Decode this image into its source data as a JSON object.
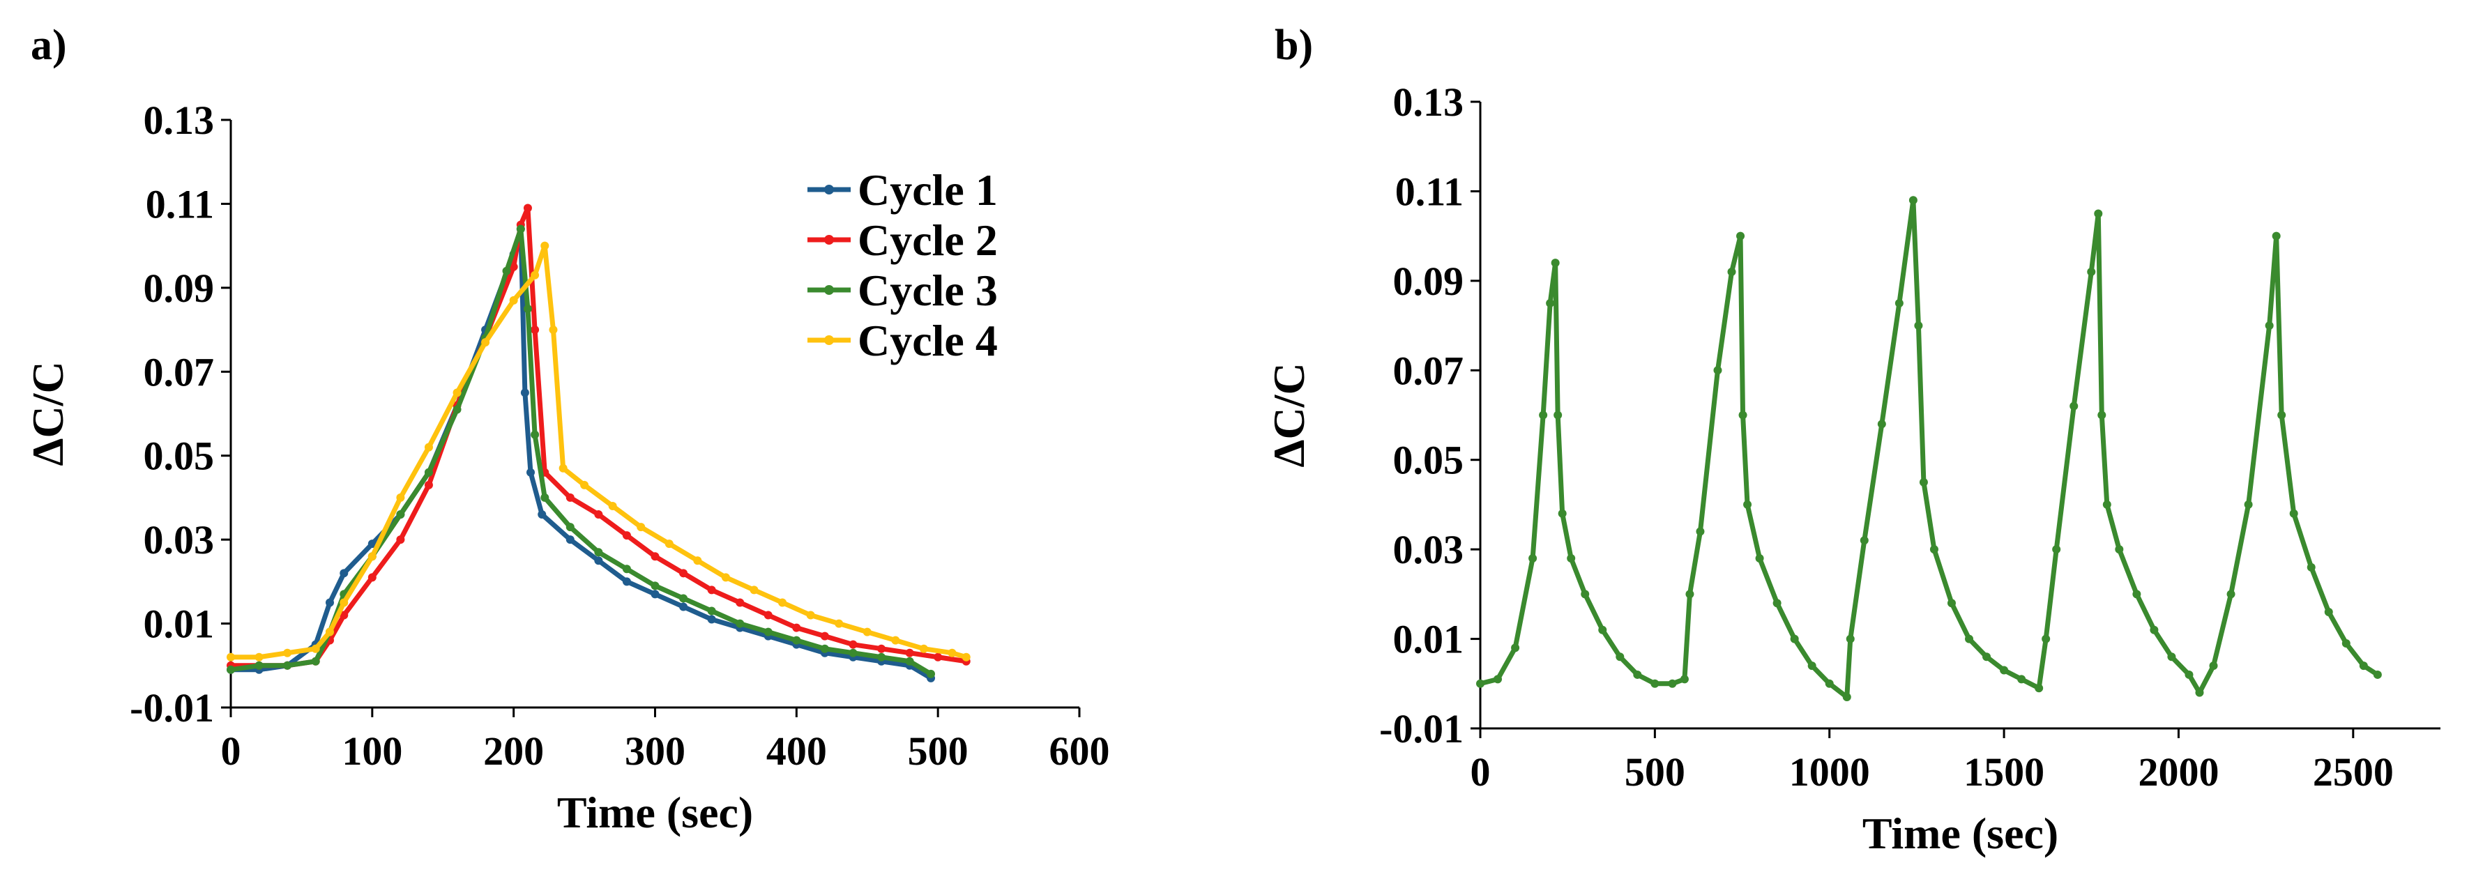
{
  "panels": {
    "a": {
      "label": "a)"
    },
    "b": {
      "label": "b)"
    }
  },
  "chart_data": [
    {
      "type": "line",
      "panel": "a)",
      "title": "",
      "xlabel": "Time (sec)",
      "ylabel": "ΔC/C",
      "xlim": [
        0,
        600
      ],
      "ylim": [
        -0.01,
        0.13
      ],
      "xticks": [
        0,
        100,
        200,
        300,
        400,
        500,
        600
      ],
      "yticks": [
        -0.01,
        0.01,
        0.03,
        0.05,
        0.07,
        0.09,
        0.11,
        0.13
      ],
      "ytick_labels": [
        "-0.01",
        "0.01",
        "0.03",
        "0.05",
        "0.07",
        "0.09",
        "0.11",
        "0.13"
      ],
      "grid": false,
      "legend": "top-right",
      "series": [
        {
          "name": "Cycle 1",
          "color": "#1f5c8e",
          "x": [
            0,
            20,
            40,
            60,
            70,
            80,
            100,
            120,
            140,
            160,
            180,
            200,
            205,
            208,
            212,
            220,
            240,
            260,
            280,
            300,
            320,
            340,
            360,
            380,
            400,
            420,
            440,
            460,
            480,
            495
          ],
          "y": [
            -0.001,
            -0.001,
            0.0,
            0.005,
            0.015,
            0.022,
            0.029,
            0.036,
            0.046,
            0.062,
            0.08,
            0.098,
            0.104,
            0.065,
            0.046,
            0.036,
            0.03,
            0.025,
            0.02,
            0.017,
            0.014,
            0.011,
            0.009,
            0.007,
            0.005,
            0.003,
            0.002,
            0.001,
            0.0,
            -0.003
          ]
        },
        {
          "name": "Cycle 2",
          "color": "#ee1c1c",
          "x": [
            0,
            20,
            40,
            60,
            70,
            80,
            100,
            120,
            140,
            160,
            180,
            200,
            205,
            210,
            215,
            222,
            240,
            260,
            280,
            300,
            320,
            340,
            360,
            380,
            400,
            420,
            440,
            460,
            480,
            500,
            520
          ],
          "y": [
            0.0,
            0.0,
            0.0,
            0.001,
            0.006,
            0.012,
            0.021,
            0.03,
            0.043,
            0.062,
            0.078,
            0.095,
            0.105,
            0.109,
            0.08,
            0.046,
            0.04,
            0.036,
            0.031,
            0.026,
            0.022,
            0.018,
            0.015,
            0.012,
            0.009,
            0.007,
            0.005,
            0.004,
            0.003,
            0.002,
            0.001
          ]
        },
        {
          "name": "Cycle 3",
          "color": "#3a8a2e",
          "x": [
            0,
            20,
            40,
            60,
            70,
            80,
            100,
            120,
            140,
            160,
            180,
            195,
            205,
            210,
            215,
            222,
            240,
            260,
            280,
            300,
            320,
            340,
            360,
            380,
            400,
            420,
            440,
            460,
            480,
            495
          ],
          "y": [
            -0.001,
            0.0,
            0.0,
            0.001,
            0.008,
            0.017,
            0.026,
            0.036,
            0.046,
            0.061,
            0.078,
            0.094,
            0.104,
            0.085,
            0.055,
            0.04,
            0.033,
            0.027,
            0.023,
            0.019,
            0.016,
            0.013,
            0.01,
            0.008,
            0.006,
            0.004,
            0.003,
            0.002,
            0.001,
            -0.002
          ]
        },
        {
          "name": "Cycle 4",
          "color": "#ffc20e",
          "x": [
            0,
            20,
            40,
            60,
            70,
            80,
            100,
            120,
            140,
            160,
            180,
            200,
            215,
            222,
            228,
            235,
            250,
            270,
            290,
            310,
            330,
            350,
            370,
            390,
            410,
            430,
            450,
            470,
            490,
            510,
            520
          ],
          "y": [
            0.002,
            0.002,
            0.003,
            0.004,
            0.008,
            0.015,
            0.026,
            0.04,
            0.052,
            0.065,
            0.077,
            0.087,
            0.093,
            0.1,
            0.08,
            0.047,
            0.043,
            0.038,
            0.033,
            0.029,
            0.025,
            0.021,
            0.018,
            0.015,
            0.012,
            0.01,
            0.008,
            0.006,
            0.004,
            0.003,
            0.002
          ]
        }
      ]
    },
    {
      "type": "line",
      "panel": "b)",
      "title": "",
      "xlabel": "Time (sec)",
      "ylabel": "ΔC/C",
      "xlim": [
        0,
        2750
      ],
      "ylim": [
        -0.01,
        0.13
      ],
      "xticks": [
        0,
        500,
        1000,
        1500,
        2000,
        2500
      ],
      "yticks": [
        -0.01,
        0.01,
        0.03,
        0.05,
        0.07,
        0.09,
        0.11,
        0.13
      ],
      "ytick_labels": [
        "-0.01",
        "0.01",
        "0.03",
        "0.05",
        "0.07",
        "0.09",
        "0.11",
        "0.13"
      ],
      "grid": false,
      "legend": "none",
      "series": [
        {
          "color": "#3a8a2e",
          "x": [
            0,
            50,
            100,
            150,
            180,
            200,
            215,
            222,
            235,
            260,
            300,
            350,
            400,
            450,
            500,
            550,
            585,
            600,
            630,
            680,
            720,
            745,
            752,
            765,
            800,
            850,
            900,
            950,
            1000,
            1050,
            1060,
            1100,
            1150,
            1200,
            1240,
            1255,
            1270,
            1300,
            1350,
            1400,
            1450,
            1500,
            1550,
            1600,
            1620,
            1650,
            1700,
            1750,
            1770,
            1780,
            1795,
            1830,
            1880,
            1930,
            1980,
            2030,
            2060,
            2100,
            2150,
            2200,
            2260,
            2280,
            2295,
            2330,
            2380,
            2430,
            2480,
            2530,
            2570
          ],
          "y": [
            0.0,
            0.001,
            0.008,
            0.028,
            0.06,
            0.085,
            0.094,
            0.06,
            0.038,
            0.028,
            0.02,
            0.012,
            0.006,
            0.002,
            0.0,
            0.0,
            0.001,
            0.02,
            0.034,
            0.07,
            0.092,
            0.1,
            0.06,
            0.04,
            0.028,
            0.018,
            0.01,
            0.004,
            0.0,
            -0.003,
            0.01,
            0.032,
            0.058,
            0.085,
            0.108,
            0.08,
            0.045,
            0.03,
            0.018,
            0.01,
            0.006,
            0.003,
            0.001,
            -0.001,
            0.01,
            0.03,
            0.062,
            0.092,
            0.105,
            0.06,
            0.04,
            0.03,
            0.02,
            0.012,
            0.006,
            0.002,
            -0.002,
            0.004,
            0.02,
            0.04,
            0.08,
            0.1,
            0.06,
            0.038,
            0.026,
            0.016,
            0.009,
            0.004,
            0.002
          ]
        }
      ]
    }
  ]
}
